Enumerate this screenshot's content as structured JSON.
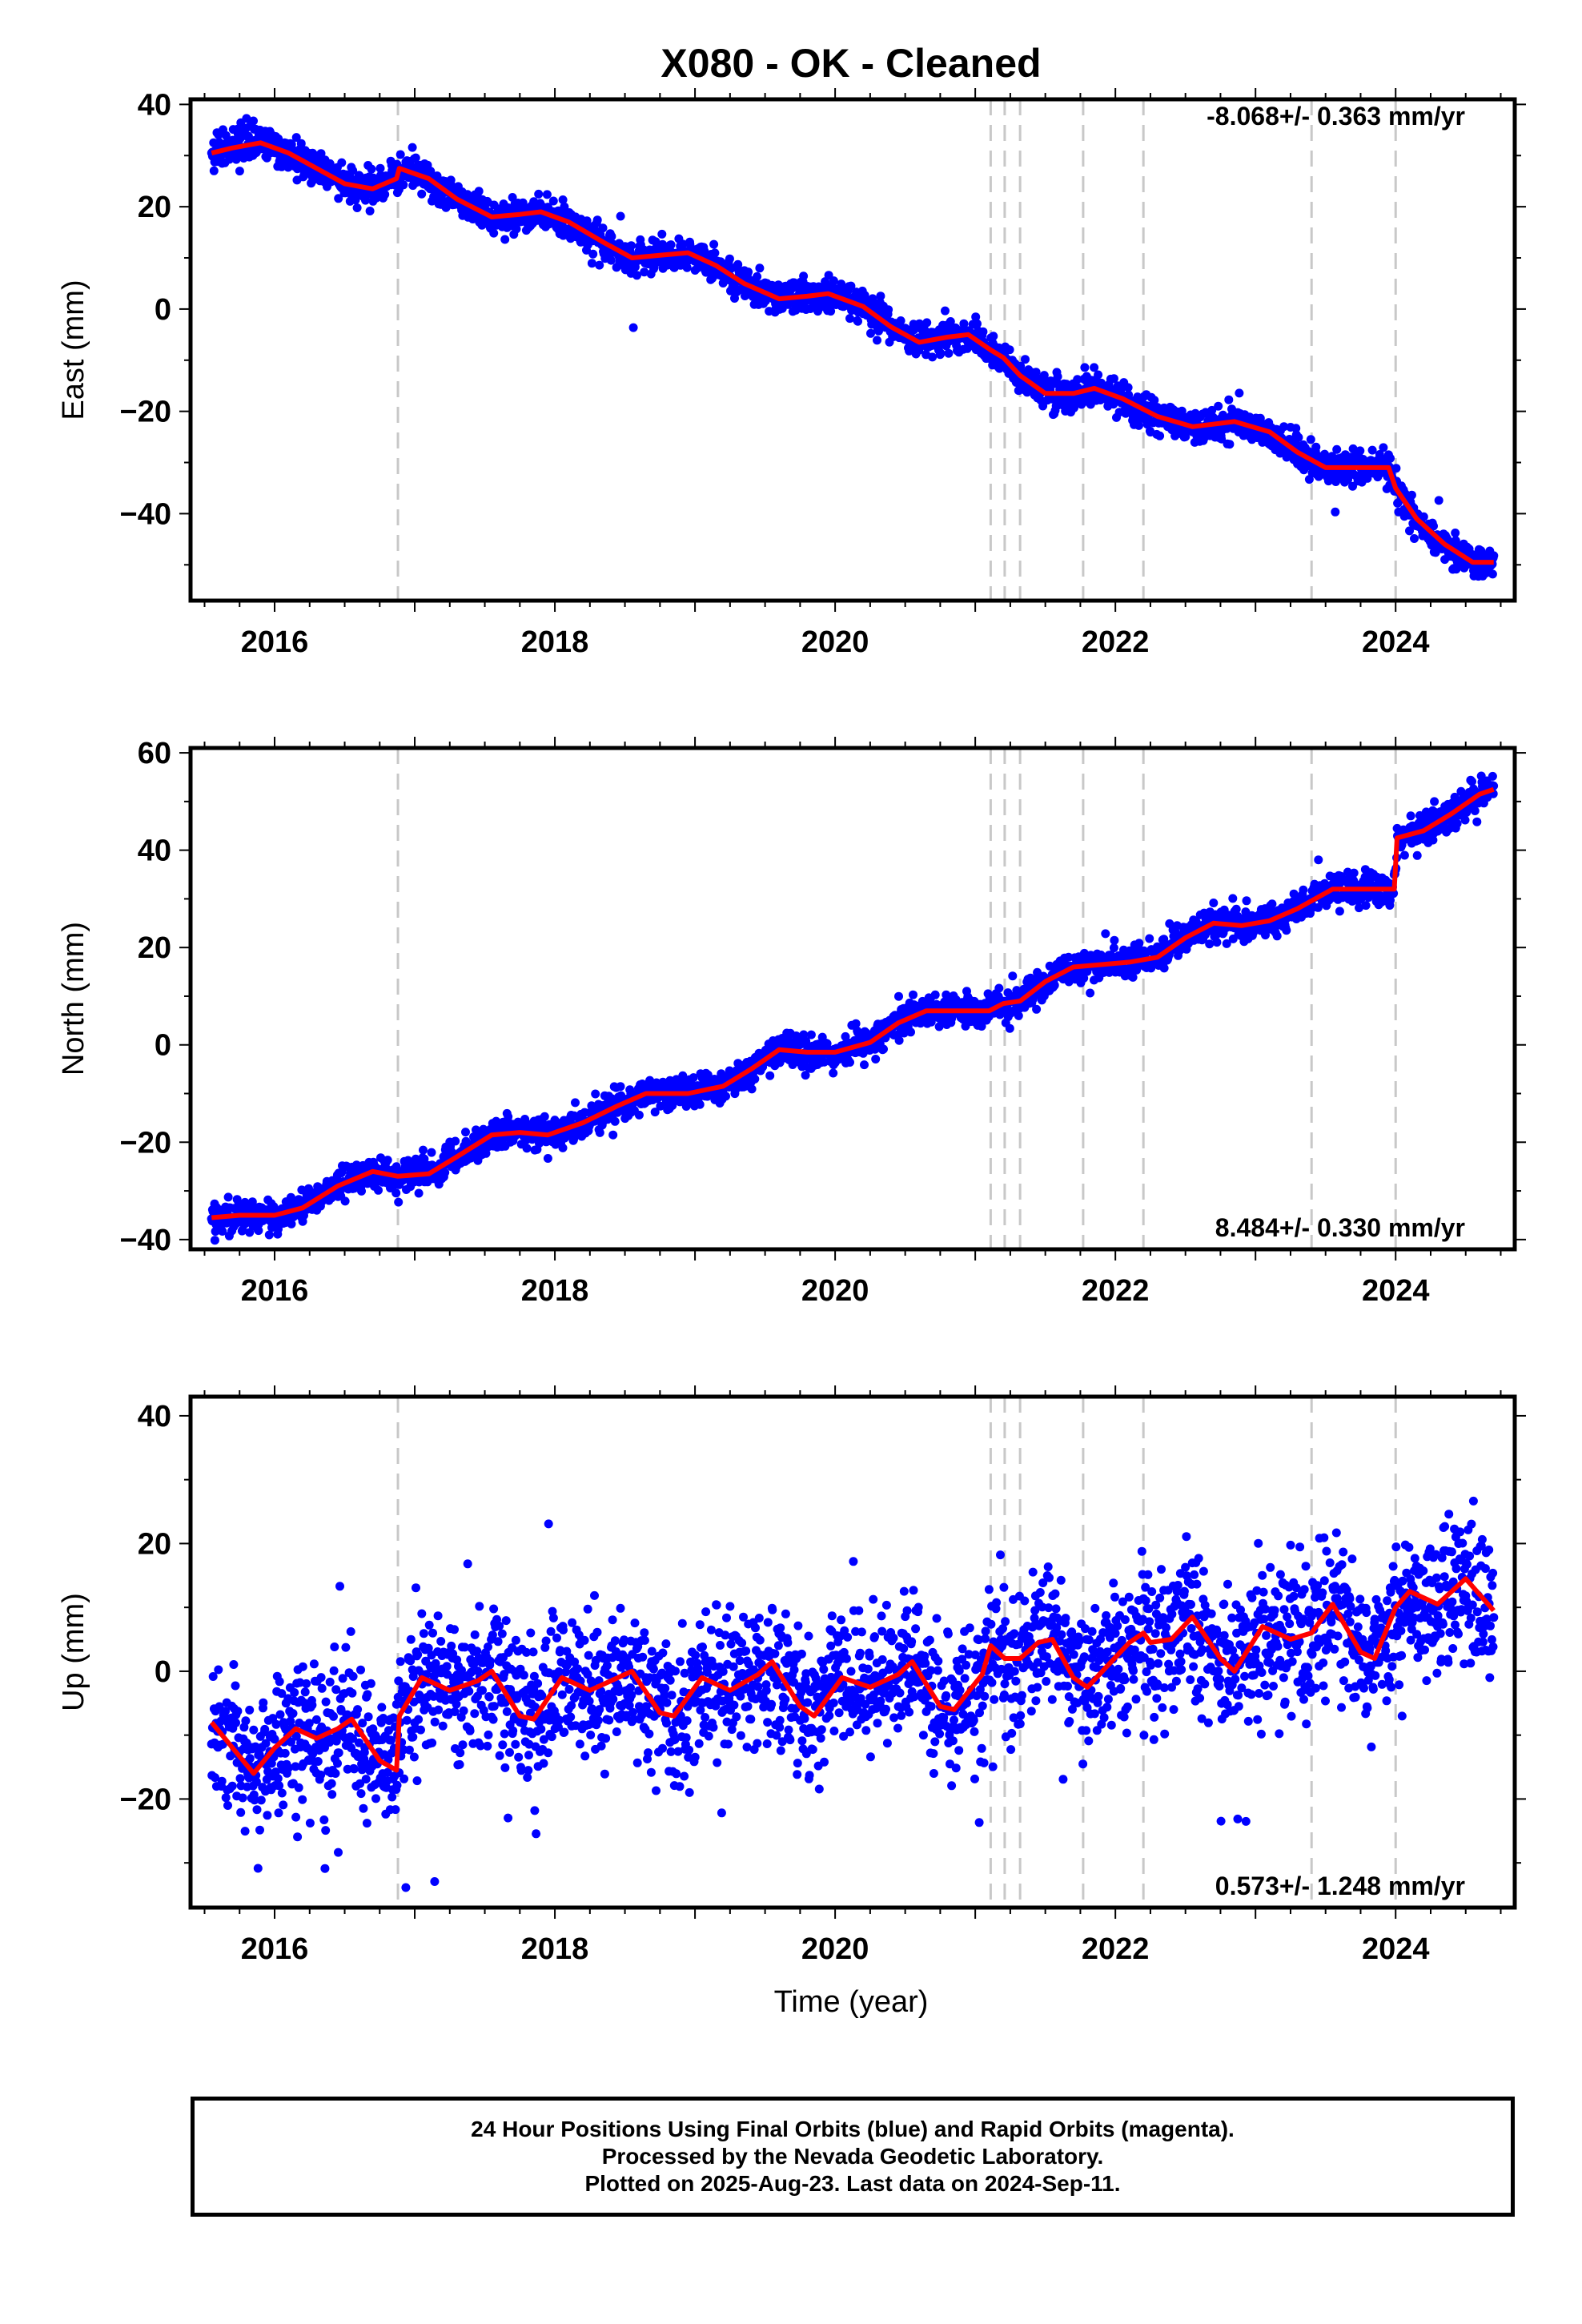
{
  "title": "X080  - OK - Cleaned",
  "xlabel": "Time (year)",
  "footer": [
    "24 Hour Positions Using Final Orbits (blue) and Rapid Orbits (magenta).",
    "Processed by the Nevada Geodetic Laboratory.",
    "Plotted on 2025-Aug-23. Last data on 2024-Sep-11."
  ],
  "colors": {
    "final_orbits": "#0000ff",
    "model": "#ff0000",
    "event_lines": "#c8c8c8"
  },
  "chart_data": [
    {
      "type": "scatter",
      "component": "East",
      "ylabel": "East (mm)",
      "rate_label": "-8.068+/- 0.363 mm/yr",
      "xlim": [
        2015.4,
        2024.85
      ],
      "ylim": [
        -57,
        41
      ],
      "xticks": [
        2016,
        2018,
        2020,
        2022,
        2024
      ],
      "yticks": [
        -40,
        -20,
        0,
        20,
        40
      ],
      "events": [
        2016.88,
        2021.11,
        2021.21,
        2021.32,
        2021.77,
        2022.2,
        2023.4,
        2024.0
      ],
      "x_range": [
        2015.55,
        2024.7
      ],
      "scatter_sd": 1.6,
      "series": [
        {
          "role": "model",
          "points": [
            [
              2015.55,
              30.5
            ],
            [
              2015.7,
              31.5
            ],
            [
              2015.9,
              32.5
            ],
            [
              2016.1,
              30.5
            ],
            [
              2016.3,
              27.5
            ],
            [
              2016.5,
              24.5
            ],
            [
              2016.7,
              23.5
            ],
            [
              2016.87,
              25.5
            ],
            [
              2016.89,
              27.5
            ],
            [
              2017.1,
              25.5
            ],
            [
              2017.3,
              21.5
            ],
            [
              2017.55,
              18
            ],
            [
              2017.75,
              18.5
            ],
            [
              2017.9,
              19
            ],
            [
              2018.1,
              17
            ],
            [
              2018.35,
              13
            ],
            [
              2018.55,
              10
            ],
            [
              2018.75,
              10.5
            ],
            [
              2018.95,
              11
            ],
            [
              2019.15,
              8.5
            ],
            [
              2019.35,
              5
            ],
            [
              2019.6,
              2
            ],
            [
              2019.8,
              2.5
            ],
            [
              2019.95,
              3
            ],
            [
              2020.2,
              0.5
            ],
            [
              2020.4,
              -3.5
            ],
            [
              2020.6,
              -6.5
            ],
            [
              2020.8,
              -5.5
            ],
            [
              2020.95,
              -5
            ],
            [
              2021.11,
              -8
            ],
            [
              2021.2,
              -9.5
            ],
            [
              2021.32,
              -13
            ],
            [
              2021.5,
              -16.5
            ],
            [
              2021.7,
              -16.5
            ],
            [
              2021.85,
              -15.5
            ],
            [
              2022.05,
              -17.5
            ],
            [
              2022.3,
              -21
            ],
            [
              2022.55,
              -23
            ],
            [
              2022.85,
              -22
            ],
            [
              2023.1,
              -24
            ],
            [
              2023.3,
              -28
            ],
            [
              2023.5,
              -31
            ],
            [
              2023.75,
              -31
            ],
            [
              2023.95,
              -31
            ],
            [
              2024.0,
              -35
            ],
            [
              2024.15,
              -41
            ],
            [
              2024.35,
              -46
            ],
            [
              2024.55,
              -49.5
            ],
            [
              2024.7,
              -49.5
            ]
          ]
        }
      ]
    },
    {
      "type": "scatter",
      "component": "North",
      "ylabel": "North (mm)",
      "rate_label": "8.484+/- 0.330 mm/yr",
      "xlim": [
        2015.4,
        2024.85
      ],
      "ylim": [
        -42,
        61
      ],
      "xticks": [
        2016,
        2018,
        2020,
        2022,
        2024
      ],
      "yticks": [
        -40,
        -20,
        0,
        20,
        40,
        60
      ],
      "events": [
        2016.88,
        2021.11,
        2021.21,
        2021.32,
        2021.77,
        2022.2,
        2023.4,
        2024.0
      ],
      "x_range": [
        2015.55,
        2024.7
      ],
      "scatter_sd": 1.6,
      "series": [
        {
          "role": "model",
          "points": [
            [
              2015.55,
              -35.5
            ],
            [
              2015.75,
              -35
            ],
            [
              2016.0,
              -35
            ],
            [
              2016.2,
              -33.5
            ],
            [
              2016.45,
              -29
            ],
            [
              2016.7,
              -26
            ],
            [
              2016.88,
              -27
            ],
            [
              2017.1,
              -26.5
            ],
            [
              2017.3,
              -23
            ],
            [
              2017.55,
              -18.5
            ],
            [
              2017.75,
              -18
            ],
            [
              2017.95,
              -18.5
            ],
            [
              2018.2,
              -16
            ],
            [
              2018.45,
              -12.5
            ],
            [
              2018.65,
              -10
            ],
            [
              2018.95,
              -10
            ],
            [
              2019.2,
              -8.5
            ],
            [
              2019.4,
              -5
            ],
            [
              2019.6,
              -1
            ],
            [
              2019.8,
              -1.5
            ],
            [
              2020.0,
              -1.5
            ],
            [
              2020.25,
              0.5
            ],
            [
              2020.45,
              4.5
            ],
            [
              2020.65,
              7
            ],
            [
              2020.85,
              7
            ],
            [
              2021.1,
              7
            ],
            [
              2021.2,
              8.5
            ],
            [
              2021.32,
              9
            ],
            [
              2021.5,
              13
            ],
            [
              2021.7,
              16
            ],
            [
              2021.9,
              16.5
            ],
            [
              2022.1,
              17
            ],
            [
              2022.3,
              18
            ],
            [
              2022.5,
              22
            ],
            [
              2022.7,
              25
            ],
            [
              2022.9,
              24.5
            ],
            [
              2023.1,
              25.5
            ],
            [
              2023.3,
              28
            ],
            [
              2023.55,
              32
            ],
            [
              2023.8,
              32
            ],
            [
              2023.99,
              32
            ],
            [
              2024.01,
              42.5
            ],
            [
              2024.2,
              44
            ],
            [
              2024.4,
              47.5
            ],
            [
              2024.6,
              51.5
            ],
            [
              2024.7,
              52.5
            ]
          ]
        }
      ]
    },
    {
      "type": "scatter",
      "component": "Up",
      "ylabel": "Up (mm)",
      "rate_label": "0.573+/- 1.248 mm/yr",
      "xlim": [
        2015.4,
        2024.85
      ],
      "ylim": [
        -37,
        43
      ],
      "xticks": [
        2016,
        2018,
        2020,
        2022,
        2024
      ],
      "yticks": [
        -20,
        0,
        20,
        40
      ],
      "events": [
        2016.88,
        2021.11,
        2021.21,
        2021.32,
        2021.77,
        2022.2,
        2023.4,
        2024.0
      ],
      "x_range": [
        2015.55,
        2024.7
      ],
      "scatter_sd": 5.5,
      "series": [
        {
          "role": "model",
          "points": [
            [
              2015.55,
              -8
            ],
            [
              2015.7,
              -12
            ],
            [
              2015.85,
              -16
            ],
            [
              2016.0,
              -12
            ],
            [
              2016.15,
              -9
            ],
            [
              2016.3,
              -10.5
            ],
            [
              2016.45,
              -9
            ],
            [
              2016.55,
              -7.5
            ],
            [
              2016.75,
              -14
            ],
            [
              2016.87,
              -15.5
            ],
            [
              2016.89,
              -7
            ],
            [
              2017.05,
              -1
            ],
            [
              2017.25,
              -3
            ],
            [
              2017.45,
              -1.5
            ],
            [
              2017.55,
              0
            ],
            [
              2017.75,
              -7
            ],
            [
              2017.85,
              -7.5
            ],
            [
              2018.05,
              -1
            ],
            [
              2018.25,
              -3
            ],
            [
              2018.45,
              -1
            ],
            [
              2018.55,
              0
            ],
            [
              2018.75,
              -6.5
            ],
            [
              2018.85,
              -7
            ],
            [
              2019.05,
              -1
            ],
            [
              2019.25,
              -3
            ],
            [
              2019.45,
              -0.5
            ],
            [
              2019.55,
              1.5
            ],
            [
              2019.75,
              -5.5
            ],
            [
              2019.85,
              -7
            ],
            [
              2020.05,
              -1
            ],
            [
              2020.25,
              -2.5
            ],
            [
              2020.45,
              -0.5
            ],
            [
              2020.55,
              1.5
            ],
            [
              2020.75,
              -5.5
            ],
            [
              2020.85,
              -6
            ],
            [
              2021.05,
              -0.5
            ],
            [
              2021.11,
              4
            ],
            [
              2021.21,
              2
            ],
            [
              2021.32,
              2
            ],
            [
              2021.45,
              4.5
            ],
            [
              2021.55,
              5
            ],
            [
              2021.7,
              -1
            ],
            [
              2021.8,
              -2.5
            ],
            [
              2021.95,
              1
            ],
            [
              2022.1,
              4.5
            ],
            [
              2022.2,
              6
            ],
            [
              2022.25,
              4.5
            ],
            [
              2022.4,
              5
            ],
            [
              2022.55,
              8.5
            ],
            [
              2022.75,
              2
            ],
            [
              2022.85,
              0
            ],
            [
              2023.05,
              7
            ],
            [
              2023.25,
              5
            ],
            [
              2023.4,
              6
            ],
            [
              2023.55,
              10.5
            ],
            [
              2023.75,
              3
            ],
            [
              2023.85,
              2
            ],
            [
              2024.0,
              10
            ],
            [
              2024.1,
              12.5
            ],
            [
              2024.3,
              10.5
            ],
            [
              2024.5,
              14.5
            ],
            [
              2024.7,
              9.5
            ]
          ]
        }
      ]
    }
  ]
}
